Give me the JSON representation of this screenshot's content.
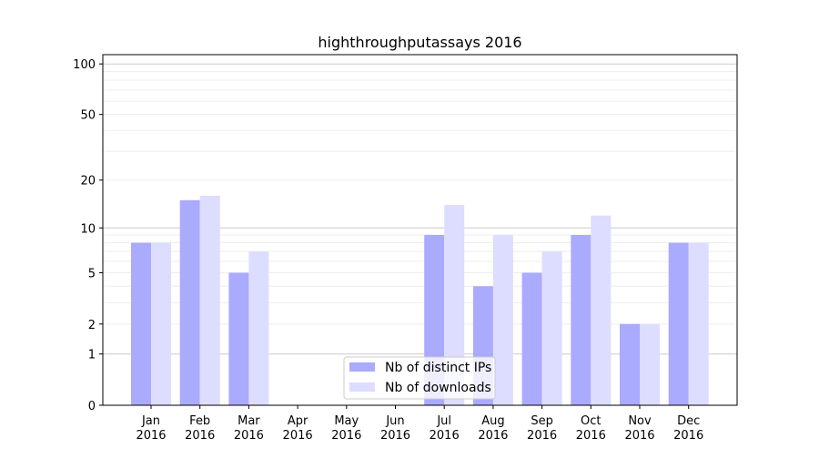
{
  "chart_data": {
    "type": "bar",
    "title": "highthroughputassays 2016",
    "xlabel": "",
    "ylabel": "",
    "yscale": "symlog (log10(1+y))",
    "ylim": [
      0,
      113
    ],
    "yticks": [
      0,
      1,
      2,
      5,
      10,
      20,
      50,
      100
    ],
    "grid": true,
    "legend_position": "lower center",
    "categories": [
      "Jan\n2016",
      "Feb\n2016",
      "Mar\n2016",
      "Apr\n2016",
      "May\n2016",
      "Jun\n2016",
      "Jul\n2016",
      "Aug\n2016",
      "Sep\n2016",
      "Oct\n2016",
      "Nov\n2016",
      "Dec\n2016"
    ],
    "series": [
      {
        "name": "Nb of distinct IPs",
        "color": "#aaaaff",
        "values": [
          8,
          15,
          5,
          0,
          0,
          0,
          9,
          4,
          5,
          9,
          2,
          8
        ]
      },
      {
        "name": "Nb of downloads",
        "color": "#ddddff",
        "values": [
          8,
          16,
          7,
          0,
          0,
          0,
          14,
          9,
          7,
          12,
          2,
          8
        ]
      }
    ]
  }
}
